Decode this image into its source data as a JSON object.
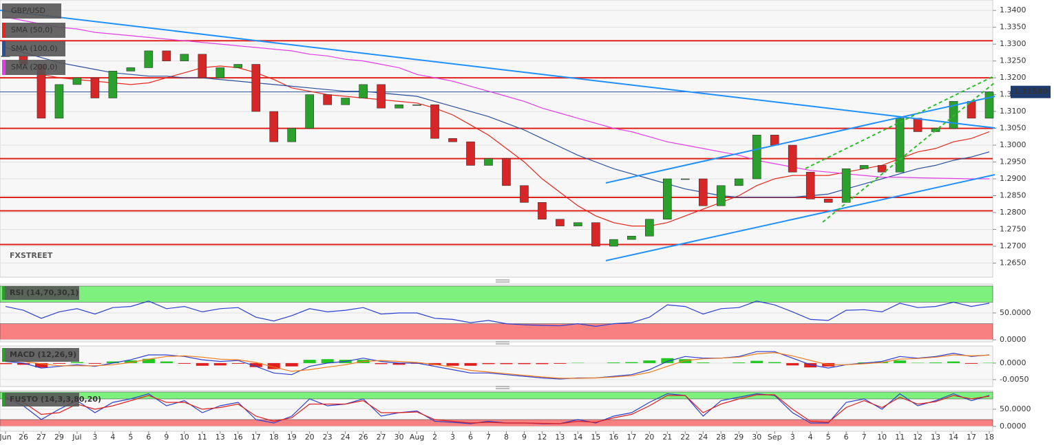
{
  "chart_data": [
    {
      "type": "candlestick",
      "title": "GBP/USD",
      "watermark": "FXSTREET",
      "categories": [
        "Jun",
        "26",
        "27",
        "29",
        "Jul",
        "3",
        "4",
        "5",
        "6",
        "9",
        "10",
        "11",
        "13",
        "16",
        "17",
        "18",
        "19",
        "20",
        "23",
        "24",
        "26",
        "27",
        "30",
        "Aug",
        "2",
        "3",
        "6",
        "7",
        "8",
        "9",
        "12",
        "13",
        "14",
        "15",
        "16",
        "17",
        "20",
        "21",
        "22",
        "24",
        "28",
        "29",
        "30",
        "Sep",
        "3",
        "4",
        "5",
        "6",
        "7",
        "10",
        "11",
        "12",
        "13",
        "14",
        "17",
        "18"
      ],
      "values": [
        1.3265,
        1.324,
        1.308,
        1.318,
        1.32,
        1.314,
        1.322,
        1.323,
        1.328,
        1.325,
        1.327,
        1.32,
        1.323,
        1.324,
        1.31,
        1.301,
        1.305,
        1.315,
        1.312,
        1.314,
        1.318,
        1.311,
        1.312,
        1.312,
        1.302,
        1.301,
        1.294,
        1.296,
        1.288,
        1.283,
        1.278,
        1.276,
        1.277,
        1.27,
        1.272,
        1.273,
        1.278,
        1.29,
        1.29,
        1.282,
        1.288,
        1.29,
        1.303,
        1.3,
        1.292,
        1.284,
        1.283,
        1.293,
        1.294,
        1.292,
        1.308,
        1.304,
        1.305,
        1.313,
        1.308,
        1.3158
      ],
      "up_color": "#2ca02c",
      "down_color": "#d62728",
      "series": [
        {
          "name": "SMA (50,0)",
          "color": "#e8261c",
          "values": [
            null,
            null,
            1.321,
            1.32,
            1.3195,
            1.319,
            1.3185,
            1.318,
            1.3185,
            1.32,
            1.3215,
            1.323,
            1.3235,
            1.323,
            1.3215,
            1.3195,
            1.317,
            1.316,
            1.315,
            1.3145,
            1.314,
            1.3135,
            1.313,
            1.3125,
            1.311,
            1.309,
            1.306,
            1.303,
            1.299,
            1.295,
            1.29,
            1.286,
            1.282,
            1.279,
            1.277,
            1.276,
            1.276,
            1.277,
            1.279,
            1.281,
            1.283,
            1.285,
            1.288,
            1.29,
            1.291,
            1.291,
            1.291,
            1.292,
            1.293,
            1.294,
            1.296,
            1.298,
            1.299,
            1.301,
            1.302,
            1.304
          ]
        },
        {
          "name": "SMA (100,0)",
          "color": "#2a4f9a",
          "values": [
            1.329,
            1.3275,
            1.326,
            1.3245,
            1.3235,
            1.3225,
            1.3215,
            1.321,
            1.3205,
            1.3205,
            1.32,
            1.32,
            1.3195,
            1.319,
            1.3185,
            1.318,
            1.3175,
            1.317,
            1.3165,
            1.316,
            1.316,
            1.3155,
            1.315,
            1.3145,
            1.313,
            1.3115,
            1.31,
            1.3085,
            1.3065,
            1.3045,
            1.302,
            1.2995,
            1.297,
            1.295,
            1.293,
            1.2915,
            1.29,
            1.2885,
            1.287,
            1.286,
            1.285,
            1.2845,
            1.2845,
            1.2845,
            1.2845,
            1.285,
            1.2855,
            1.287,
            1.2885,
            1.29,
            1.2915,
            1.293,
            1.294,
            1.2955,
            1.2965,
            1.298
          ]
        },
        {
          "name": "SMA (200,0)",
          "color": "#e23ce6",
          "values": [
            1.338,
            1.337,
            1.336,
            1.335,
            1.3345,
            1.3335,
            1.333,
            1.3325,
            1.332,
            1.3315,
            1.331,
            1.3305,
            1.33,
            1.3295,
            1.329,
            1.3285,
            1.328,
            1.327,
            1.3265,
            1.3255,
            1.325,
            1.324,
            1.323,
            1.321,
            1.32,
            1.319,
            1.3175,
            1.316,
            1.3145,
            1.313,
            1.311,
            1.3095,
            1.308,
            1.3065,
            1.305,
            1.304,
            1.3025,
            1.301,
            1.3,
            1.299,
            1.298,
            1.297,
            1.2955,
            1.2945,
            1.2935,
            1.2925,
            1.292,
            1.2915,
            1.291,
            1.2905,
            1.2905,
            1.2903,
            1.2902,
            1.2901,
            1.29,
            1.29
          ]
        }
      ],
      "levels": [
        1.331,
        1.32,
        1.305,
        1.296,
        1.2845,
        1.2805,
        1.2705
      ],
      "level_color": "#e0201a",
      "last_price": {
        "value": 1.3158,
        "label": "1.31580"
      },
      "ylim": [
        1.2608,
        1.3431
      ],
      "yticks": [
        {
          "value": 1.34,
          "label": "1.3400"
        },
        {
          "value": 1.335,
          "label": "1.3350"
        },
        {
          "value": 1.33,
          "label": "1.3300"
        },
        {
          "value": 1.325,
          "label": "1.3250"
        },
        {
          "value": 1.32,
          "label": "1.3200"
        },
        {
          "value": 1.315,
          "label": "1.3150"
        },
        {
          "value": 1.31,
          "label": "1.3100"
        },
        {
          "value": 1.305,
          "label": "1.3050"
        },
        {
          "value": 1.3,
          "label": "1.3000"
        },
        {
          "value": 1.295,
          "label": "1.2950"
        },
        {
          "value": 1.29,
          "label": "1.2900"
        },
        {
          "value": 1.285,
          "label": "1.2850"
        },
        {
          "value": 1.28,
          "label": "1.2800"
        },
        {
          "value": 1.275,
          "label": "1.2750"
        },
        {
          "value": 1.27,
          "label": "1.2700"
        },
        {
          "value": 1.265,
          "label": "1.2650"
        }
      ]
    },
    {
      "type": "line",
      "title": "RSI (14,70,30,1)",
      "zones": [
        {
          "from": 70,
          "to": 100,
          "color": "#7ef07e"
        },
        {
          "from": 0,
          "to": 30,
          "color": "#f88080"
        }
      ],
      "series": [
        {
          "color": "#2b3fd0",
          "values": [
            62,
            55,
            40,
            52,
            58,
            48,
            60,
            62,
            72,
            58,
            62,
            52,
            58,
            60,
            42,
            35,
            45,
            58,
            52,
            55,
            60,
            48,
            50,
            50,
            40,
            38,
            32,
            36,
            30,
            28,
            27,
            26,
            30,
            25,
            30,
            32,
            42,
            65,
            62,
            48,
            58,
            60,
            72,
            65,
            52,
            38,
            36,
            55,
            56,
            52,
            68,
            60,
            62,
            70,
            62,
            68
          ]
        }
      ],
      "ylim": [
        -3.8,
        103.8
      ],
      "yticks": [
        {
          "value": 50,
          "label": "50.0000"
        },
        {
          "value": 0,
          "label": "0.0000"
        }
      ]
    },
    {
      "type": "line",
      "title": "MACD (12,26,9)",
      "histogram": {
        "values": [
          -0.0003,
          -0.0005,
          -0.0013,
          -0.0002,
          0.0003,
          -0.0002,
          0.0005,
          0.0008,
          0.0013,
          0.0005,
          -0.0002,
          -0.0008,
          -0.0007,
          -0.0002,
          -0.0012,
          -0.0018,
          -0.001,
          0.001,
          0.0012,
          0.001,
          0.001,
          -0.0003,
          -0.0005,
          -0.0002,
          -0.0006,
          -0.0008,
          -0.0008,
          -0.0003,
          -0.0003,
          -0.0003,
          -0.0003,
          -0.0002,
          0.0001,
          0,
          0.0002,
          0.0003,
          0.0008,
          0.0015,
          0.0012,
          0.0002,
          0,
          0.0002,
          0.0007,
          0.0003,
          -0.0007,
          -0.0013,
          -0.001,
          0,
          0.0002,
          0.0003,
          0.0008,
          0.0001,
          0.0002,
          0.0005,
          -0.0002,
          0.0001
        ],
        "up_color": "#22c822",
        "down_color": "#e01e1e"
      },
      "series": [
        {
          "color": "#2b3fd0",
          "values": [
            0.0005,
            0,
            -0.0015,
            -0.001,
            -0.0005,
            -0.001,
            0,
            0.001,
            0.0025,
            0.0025,
            0.002,
            0.001,
            0.0005,
            0.0008,
            -0.001,
            -0.003,
            -0.0035,
            -0.001,
            0,
            0.0005,
            0.0015,
            0.0005,
            0,
            0,
            -0.001,
            -0.002,
            -0.003,
            -0.003,
            -0.0035,
            -0.004,
            -0.0045,
            -0.0048,
            -0.0045,
            -0.0045,
            -0.004,
            -0.0035,
            -0.002,
            0.0005,
            0.002,
            0.0015,
            0.0015,
            0.002,
            0.0035,
            0.0035,
            0.0015,
            -0.0005,
            -0.0015,
            -0.0005,
            0,
            0.0005,
            0.002,
            0.0015,
            0.002,
            0.003,
            0.002,
            0.0025
          ]
        },
        {
          "color": "#f07a1a",
          "values": [
            0.0008,
            0.0005,
            -0.0002,
            -0.0008,
            -0.0008,
            -0.0008,
            -0.0005,
            0.0002,
            0.0012,
            0.002,
            0.0022,
            0.0018,
            0.0012,
            0.001,
            0.0002,
            -0.0012,
            -0.0025,
            -0.002,
            -0.0012,
            -0.0005,
            0.0005,
            0.0008,
            0.0005,
            0.0002,
            -0.0004,
            -0.0012,
            -0.0022,
            -0.0027,
            -0.0032,
            -0.0037,
            -0.0042,
            -0.0046,
            -0.0046,
            -0.0045,
            -0.0042,
            -0.0038,
            -0.0028,
            -0.001,
            0.0008,
            0.0013,
            0.0015,
            0.0018,
            0.0028,
            0.0032,
            0.0022,
            0.0008,
            -0.0005,
            -0.0005,
            -0.0002,
            0.0002,
            0.0012,
            0.0014,
            0.0018,
            0.0025,
            0.0022,
            0.0024
          ]
        }
      ],
      "ylim": [
        -0.0071,
        0.0052
      ],
      "yticks": [
        {
          "value": 0,
          "label": "0.0000"
        },
        {
          "value": -0.005,
          "label": "-0.0050"
        }
      ]
    },
    {
      "type": "line",
      "title": "FUSTO (14,3,3,80,20)",
      "zones": [
        {
          "from": 80,
          "to": 100,
          "color": "#7ef07e"
        },
        {
          "from": 0,
          "to": 20,
          "color": "#f88080"
        }
      ],
      "series": [
        {
          "color": "#2b3fd0",
          "values": [
            85,
            60,
            20,
            50,
            75,
            40,
            70,
            80,
            95,
            60,
            75,
            40,
            60,
            70,
            20,
            10,
            30,
            80,
            60,
            65,
            80,
            30,
            40,
            45,
            15,
            12,
            8,
            15,
            10,
            10,
            8,
            8,
            20,
            10,
            30,
            40,
            70,
            95,
            90,
            30,
            75,
            85,
            95,
            90,
            40,
            10,
            10,
            70,
            80,
            50,
            95,
            60,
            75,
            95,
            75,
            90
          ]
        },
        {
          "color": "#e01e1e",
          "values": [
            80,
            70,
            35,
            40,
            65,
            50,
            60,
            75,
            90,
            70,
            70,
            50,
            55,
            65,
            30,
            15,
            25,
            65,
            65,
            65,
            75,
            40,
            40,
            42,
            20,
            15,
            10,
            12,
            10,
            10,
            9,
            8,
            15,
            12,
            25,
            35,
            60,
            90,
            90,
            40,
            65,
            80,
            92,
            92,
            50,
            15,
            12,
            55,
            75,
            55,
            85,
            65,
            72,
            90,
            80,
            88
          ]
        }
      ],
      "ylim": [
        -14,
        104
      ],
      "yticks": [
        {
          "value": 50,
          "label": "50.0000"
        },
        {
          "value": 0,
          "label": "0.0000"
        }
      ]
    }
  ]
}
